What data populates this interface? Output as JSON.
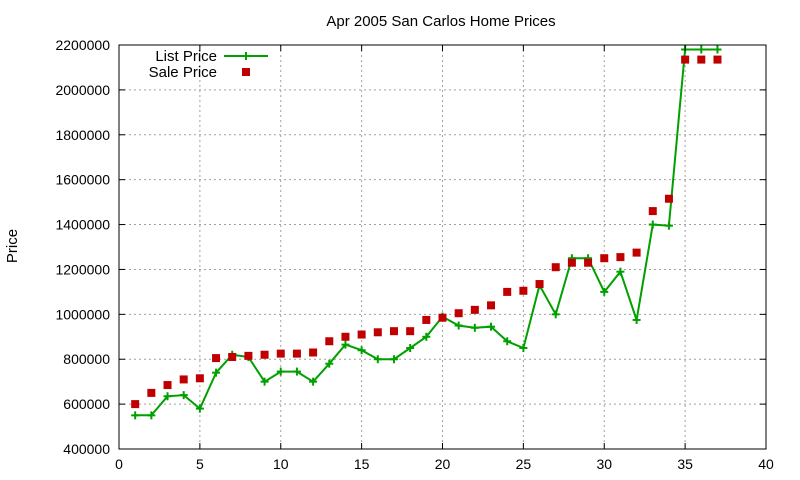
{
  "chart_data": {
    "type": "line",
    "title": "Apr 2005 San Carlos Home Prices",
    "xlabel": "",
    "ylabel": "Price",
    "xlim": [
      0,
      40
    ],
    "ylim": [
      400000,
      2200000
    ],
    "x_ticks": [
      "0",
      "5",
      "10",
      "15",
      "20",
      "25",
      "30",
      "35",
      "40"
    ],
    "y_ticks": [
      "400000",
      "600000",
      "800000",
      "1000000",
      "1200000",
      "1400000",
      "1600000",
      "1800000",
      "2000000",
      "2200000"
    ],
    "grid": true,
    "legend_position": "top-left",
    "series": [
      {
        "name": "List Price",
        "style": "line-with-plus-markers",
        "color": "#00a000",
        "x": [
          1,
          2,
          3,
          4,
          5,
          6,
          7,
          8,
          9,
          10,
          11,
          12,
          13,
          14,
          15,
          16,
          17,
          18,
          19,
          20,
          21,
          22,
          23,
          24,
          25,
          26,
          27,
          28,
          29,
          30,
          31,
          32,
          33,
          34,
          35,
          36,
          37
        ],
        "values": [
          550000,
          550000,
          635000,
          640000,
          580000,
          740000,
          820000,
          810000,
          700000,
          745000,
          745000,
          700000,
          780000,
          865000,
          840000,
          800000,
          800000,
          850000,
          900000,
          990000,
          950000,
          940000,
          945000,
          880000,
          850000,
          1130000,
          1000000,
          1250000,
          1250000,
          1100000,
          1190000,
          975000,
          1400000,
          1395000,
          2180000,
          2180000,
          2180000
        ]
      },
      {
        "name": "Sale Price",
        "style": "square-markers",
        "color": "#c00000",
        "x": [
          1,
          2,
          3,
          4,
          5,
          6,
          7,
          8,
          9,
          10,
          11,
          12,
          13,
          14,
          15,
          16,
          17,
          18,
          19,
          20,
          21,
          22,
          23,
          24,
          25,
          26,
          27,
          28,
          29,
          30,
          31,
          32,
          33,
          34,
          35,
          36,
          37
        ],
        "values": [
          600000,
          650000,
          685000,
          710000,
          715000,
          805000,
          810000,
          815000,
          820000,
          825000,
          825000,
          830000,
          880000,
          900000,
          910000,
          920000,
          925000,
          925000,
          975000,
          985000,
          1005000,
          1020000,
          1040000,
          1100000,
          1105000,
          1135000,
          1210000,
          1230000,
          1230000,
          1250000,
          1255000,
          1275000,
          1460000,
          1515000,
          2135000,
          2135000,
          2135000
        ]
      }
    ]
  }
}
